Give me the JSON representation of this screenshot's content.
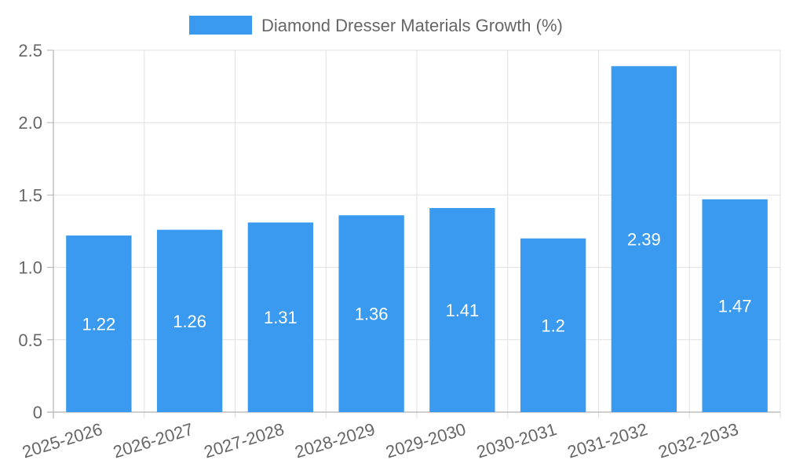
{
  "chart_data": {
    "type": "bar",
    "categories": [
      "2025-2026",
      "2026-2027",
      "2027-2028",
      "2028-2029",
      "2029-2030",
      "2030-2031",
      "2031-2032",
      "2032-2033"
    ],
    "series": [
      {
        "name": "Diamond Dresser Materials Growth (%)",
        "values": [
          1.22,
          1.26,
          1.31,
          1.36,
          1.41,
          1.2,
          2.39,
          1.47
        ],
        "labels": [
          "1.22",
          "1.26",
          "1.31",
          "1.36",
          "1.41",
          "1.2",
          "2.39",
          "1.47"
        ],
        "color": "#3a9af0"
      }
    ],
    "ylim": [
      0,
      2.5
    ],
    "yticks": [
      0,
      0.5,
      1.0,
      1.5,
      2.0,
      2.5
    ],
    "ytick_labels": [
      "0",
      "0.5",
      "1.0",
      "1.5",
      "2.0",
      "2.5"
    ],
    "grid": true,
    "legend": "top-center",
    "title": "",
    "xlabel": "",
    "ylabel": ""
  }
}
